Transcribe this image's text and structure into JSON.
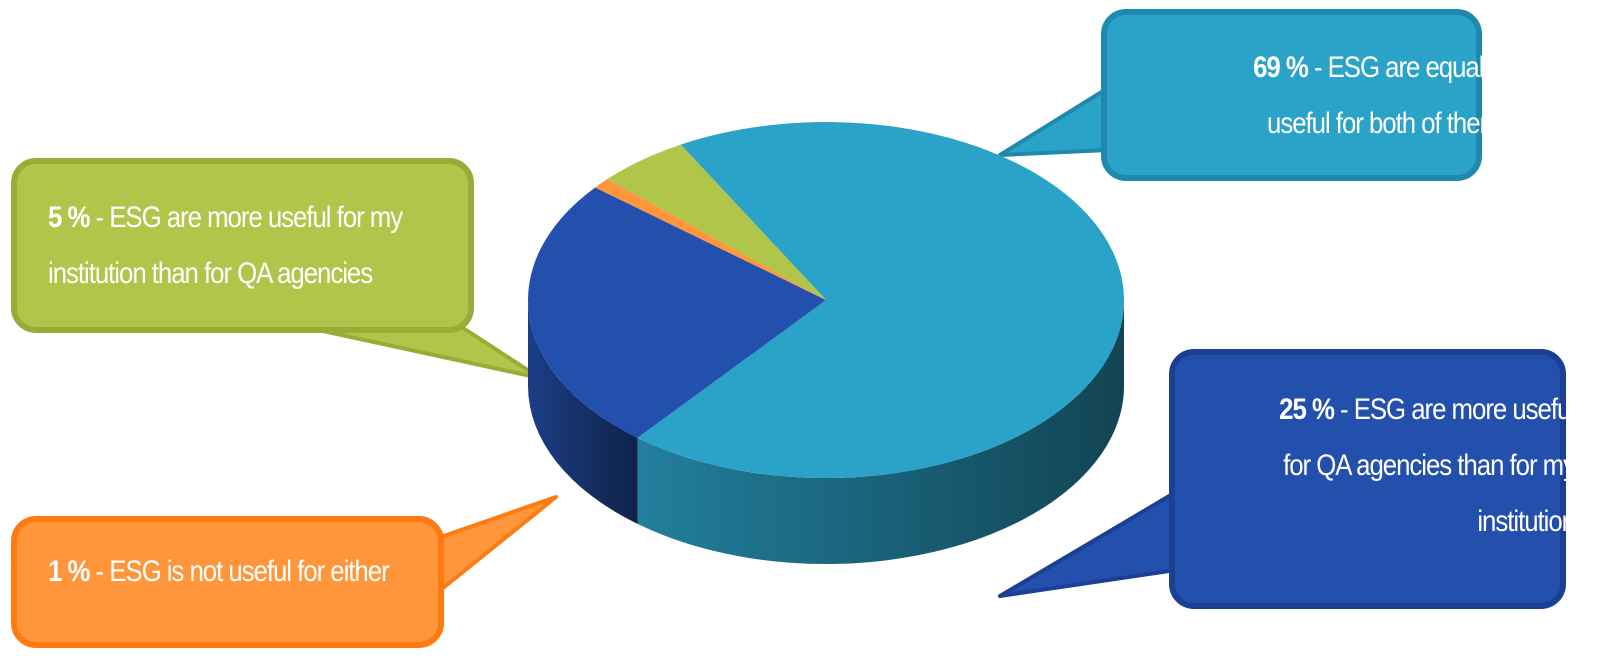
{
  "chart_data": {
    "type": "pie",
    "title": "",
    "slices": [
      {
        "key": "equal",
        "value": 69,
        "percent_label": "69 %",
        "text": "ESG are equally useful for both of them",
        "color": "#2BA3C9"
      },
      {
        "key": "qa",
        "value": 25,
        "percent_label": "25 %",
        "text": "ESG are more useful for QA agencies than for my institution",
        "color": "#2450AD"
      },
      {
        "key": "either",
        "value": 1,
        "percent_label": "1 %",
        "text": "ESG is not useful for either",
        "color": "#FF963B"
      },
      {
        "key": "inst",
        "value": 5,
        "percent_label": "5 %",
        "text": "ESG are more useful for my institution than for QA agencies",
        "color": "#AFC64A"
      }
    ]
  },
  "callouts": {
    "equal": {
      "pct": "69 %",
      "line1": "- ESG are equally",
      "line2": "useful for both of them"
    },
    "inst": {
      "pct": "5 %",
      "line1": "- ESG are more useful for my",
      "line2": "institution than for QA agencies"
    },
    "qa": {
      "pct": "25 %",
      "line1": "- ESG are more useful",
      "line2": "for QA agencies than for my",
      "line3": "institution"
    },
    "either": {
      "pct": "1 %",
      "line1": "- ESG is not useful for either"
    }
  }
}
